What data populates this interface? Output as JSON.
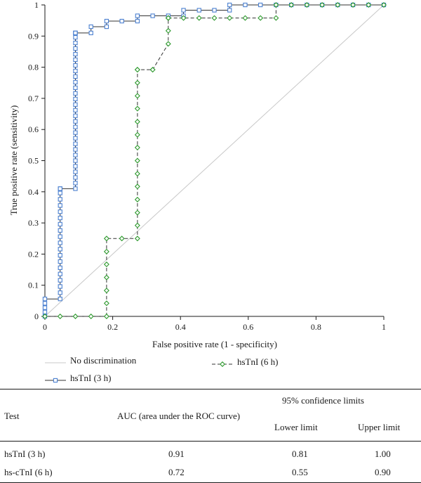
{
  "chart_data": {
    "type": "line",
    "xlabel": "False positive rate (1 - specificity)",
    "ylabel": "True positive rate (sensitivity)",
    "xlim": [
      0,
      1
    ],
    "ylim": [
      0,
      1
    ],
    "xticks": [
      0,
      0.2,
      0.4,
      0.6,
      0.8,
      1
    ],
    "xtick_labels": [
      "0",
      "0.2",
      "0.4",
      "0.6",
      "0.8",
      "1"
    ],
    "yticks": [
      0,
      0.1,
      0.2,
      0.3,
      0.4,
      0.5,
      0.6,
      0.7,
      0.8,
      0.9,
      1
    ],
    "ytick_labels": [
      "0",
      "0.1",
      "0.2",
      "0.3",
      "0.4",
      "0.5",
      "0.6",
      "0.7",
      "0.8",
      "0.9",
      "1"
    ],
    "grid": false,
    "legend_placement": "bottom",
    "series": [
      {
        "name": "No discrimination",
        "color": "#c8c8c8",
        "style": "solid",
        "marker": "none",
        "x": [
          0,
          1
        ],
        "y": [
          0,
          1
        ]
      },
      {
        "name": "hsTnI (3 h)",
        "color": "#4a7fd0",
        "style": "solid",
        "marker": "square",
        "x": [
          0,
          0,
          0,
          0,
          0,
          0.045,
          0.045,
          0.045,
          0.045,
          0.045,
          0.045,
          0.045,
          0.045,
          0.045,
          0.045,
          0.045,
          0.045,
          0.045,
          0.045,
          0.045,
          0.045,
          0.045,
          0.045,
          0.045,
          0.045,
          0.09,
          0.09,
          0.09,
          0.09,
          0.09,
          0.09,
          0.09,
          0.09,
          0.09,
          0.09,
          0.09,
          0.09,
          0.09,
          0.09,
          0.09,
          0.09,
          0.09,
          0.09,
          0.09,
          0.09,
          0.09,
          0.09,
          0.09,
          0.09,
          0.09,
          0.09,
          0.09,
          0.09,
          0.09,
          0.09,
          0.09,
          0.136,
          0.136,
          0.182,
          0.182,
          0.227,
          0.273,
          0.273,
          0.318,
          0.364,
          0.409,
          0.409,
          0.455,
          0.5,
          0.545,
          0.545,
          0.591,
          0.636,
          0.682,
          0.727,
          0.773,
          0.818,
          0.864,
          0.909,
          0.955,
          1.0
        ],
        "y": [
          0,
          0.014,
          0.028,
          0.042,
          0.056,
          0.056,
          0.076,
          0.096,
          0.116,
          0.136,
          0.156,
          0.176,
          0.196,
          0.216,
          0.236,
          0.256,
          0.276,
          0.296,
          0.316,
          0.336,
          0.356,
          0.376,
          0.396,
          0.41,
          0.41,
          0.41,
          0.428,
          0.446,
          0.464,
          0.482,
          0.5,
          0.518,
          0.536,
          0.554,
          0.572,
          0.59,
          0.608,
          0.626,
          0.644,
          0.662,
          0.68,
          0.698,
          0.716,
          0.734,
          0.752,
          0.77,
          0.788,
          0.806,
          0.824,
          0.842,
          0.86,
          0.878,
          0.896,
          0.91,
          0.91,
          0.91,
          0.91,
          0.93,
          0.93,
          0.948,
          0.948,
          0.948,
          0.965,
          0.965,
          0.965,
          0.965,
          0.983,
          0.983,
          0.983,
          0.983,
          1.0,
          1.0,
          1.0,
          1.0,
          1.0,
          1.0,
          1.0,
          1.0,
          1.0,
          1.0,
          1.0
        ]
      },
      {
        "name": "hsTnI (6 h)",
        "color": "#2f9a2f",
        "style": "dashed",
        "marker": "diamond",
        "x": [
          0,
          0.045,
          0.09,
          0.136,
          0.182,
          0.182,
          0.182,
          0.182,
          0.182,
          0.182,
          0.182,
          0.227,
          0.273,
          0.273,
          0.273,
          0.273,
          0.273,
          0.273,
          0.273,
          0.273,
          0.273,
          0.273,
          0.273,
          0.273,
          0.273,
          0.273,
          0.273,
          0.318,
          0.318,
          0.364,
          0.364,
          0.364,
          0.364,
          0.364,
          0.409,
          0.455,
          0.5,
          0.545,
          0.591,
          0.636,
          0.682,
          0.682,
          0.727,
          0.773,
          0.818,
          0.864,
          0.909,
          0.955,
          1.0
        ],
        "y": [
          0,
          0,
          0,
          0,
          0,
          0.042,
          0.083,
          0.125,
          0.167,
          0.208,
          0.25,
          0.25,
          0.25,
          0.292,
          0.333,
          0.375,
          0.417,
          0.458,
          0.5,
          0.542,
          0.583,
          0.625,
          0.667,
          0.708,
          0.75,
          0.792,
          0.792,
          0.792,
          0.792,
          0.875,
          0.917,
          0.958,
          0.958,
          0.958,
          0.958,
          0.958,
          0.958,
          0.958,
          0.958,
          0.958,
          0.958,
          1.0,
          1.0,
          1.0,
          1.0,
          1.0,
          1.0,
          1.0,
          1.0
        ]
      }
    ]
  },
  "table": {
    "header_group": "95% confidence limits",
    "columns": [
      "Test",
      "AUC (area under the ROC curve)",
      "Lower limit",
      "Upper limit"
    ],
    "rows": [
      [
        "hsTnI (3 h)",
        "0.91",
        "0.81",
        "1.00"
      ],
      [
        "hs-cTnI (6 h)",
        "0.72",
        "0.55",
        "0.90"
      ]
    ]
  }
}
